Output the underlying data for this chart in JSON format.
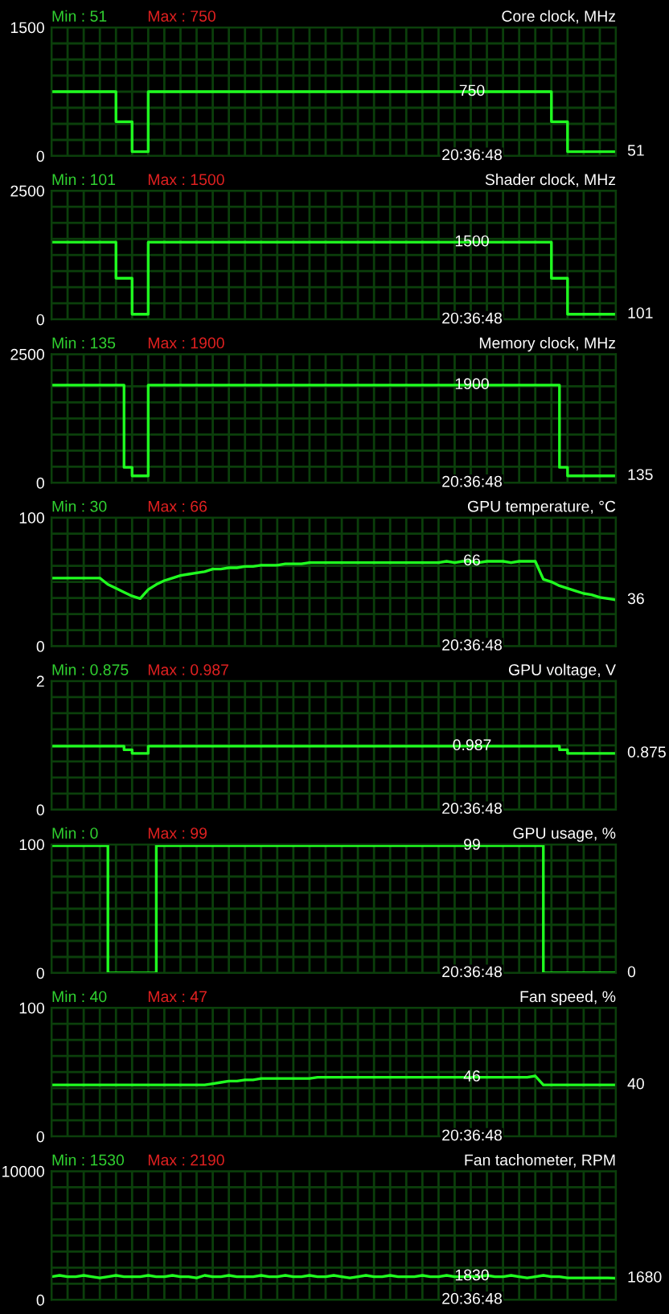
{
  "chart_data": [
    {
      "type": "step",
      "title": "Core clock, MHz",
      "color": "#20ff20",
      "grid": true,
      "tick_labels": "y",
      "ylim": [
        0,
        1500
      ],
      "yticks": [
        0,
        {
          "value": 187.5,
          "label": null
        },
        {
          "value": 375,
          "label": null
        },
        {
          "value": 562.5,
          "label": null
        },
        {
          "value": 750,
          "label": null
        },
        {
          "value": 937.5,
          "label": null
        },
        {
          "value": 1125,
          "label": null
        },
        {
          "value": 1312.5,
          "label": null
        },
        1500
      ],
      "categories": [
        null,
        null,
        null,
        null,
        null,
        null,
        null,
        null,
        null,
        null,
        null,
        null,
        null,
        null,
        null,
        null,
        null,
        null,
        null,
        null,
        null,
        null,
        null,
        null,
        null,
        null,
        null,
        null,
        null,
        null,
        null,
        null,
        null,
        null,
        null,
        null,
        null,
        null,
        null,
        null,
        null,
        null,
        null,
        null,
        null,
        null,
        null,
        null,
        null,
        null,
        null,
        null,
        null,
        null,
        null,
        null,
        null,
        null,
        null,
        null,
        null,
        null,
        null,
        null,
        null,
        null,
        null,
        null,
        null,
        null,
        null
      ],
      "values": [
        750,
        750,
        750,
        750,
        750,
        750,
        750,
        750,
        400,
        400,
        51,
        51,
        750,
        750,
        750,
        750,
        750,
        750,
        750,
        750,
        750,
        750,
        750,
        750,
        750,
        750,
        750,
        750,
        750,
        750,
        750,
        750,
        750,
        750,
        750,
        750,
        750,
        750,
        750,
        750,
        750,
        750,
        750,
        750,
        750,
        750,
        750,
        750,
        750,
        750,
        750,
        750,
        750,
        750,
        750,
        750,
        750,
        750,
        750,
        750,
        750,
        750,
        400,
        400,
        51,
        51,
        51,
        51,
        51,
        51,
        51
      ],
      "annotations": [
        "Min : 51",
        "Max : 750",
        {
          "text": "750",
          "y": 750
        },
        "51",
        "20:36:48"
      ]
    },
    {
      "type": "step",
      "title": "Shader clock, MHz",
      "color": "#20ff20",
      "grid": true,
      "tick_labels": "y",
      "ylim": [
        0,
        2500
      ],
      "yticks": [
        0,
        {
          "value": 312.5,
          "label": null
        },
        {
          "value": 625,
          "label": null
        },
        {
          "value": 937.5,
          "label": null
        },
        {
          "value": 1250,
          "label": null
        },
        {
          "value": 1562.5,
          "label": null
        },
        {
          "value": 1875,
          "label": null
        },
        {
          "value": 2187.5,
          "label": null
        },
        2500
      ],
      "categories": [
        null,
        null,
        null,
        null,
        null,
        null,
        null,
        null,
        null,
        null,
        null,
        null,
        null,
        null,
        null,
        null,
        null,
        null,
        null,
        null,
        null,
        null,
        null,
        null,
        null,
        null,
        null,
        null,
        null,
        null,
        null,
        null,
        null,
        null,
        null,
        null,
        null,
        null,
        null,
        null,
        null,
        null,
        null,
        null,
        null,
        null,
        null,
        null,
        null,
        null,
        null,
        null,
        null,
        null,
        null,
        null,
        null,
        null,
        null,
        null,
        null,
        null,
        null,
        null,
        null,
        null,
        null,
        null,
        null,
        null,
        null
      ],
      "values": [
        1500,
        1500,
        1500,
        1500,
        1500,
        1500,
        1500,
        1500,
        800,
        800,
        101,
        101,
        1500,
        1500,
        1500,
        1500,
        1500,
        1500,
        1500,
        1500,
        1500,
        1500,
        1500,
        1500,
        1500,
        1500,
        1500,
        1500,
        1500,
        1500,
        1500,
        1500,
        1500,
        1500,
        1500,
        1500,
        1500,
        1500,
        1500,
        1500,
        1500,
        1500,
        1500,
        1500,
        1500,
        1500,
        1500,
        1500,
        1500,
        1500,
        1500,
        1500,
        1500,
        1500,
        1500,
        1500,
        1500,
        1500,
        1500,
        1500,
        1500,
        1500,
        800,
        800,
        101,
        101,
        101,
        101,
        101,
        101,
        101
      ],
      "annotations": [
        "Min : 101",
        "Max : 1500",
        {
          "text": "1500",
          "y": 1500
        },
        "101",
        "20:36:48"
      ]
    },
    {
      "type": "step",
      "title": "Memory clock, MHz",
      "color": "#20ff20",
      "grid": true,
      "tick_labels": "y",
      "ylim": [
        0,
        2500
      ],
      "yticks": [
        0,
        {
          "value": 312.5,
          "label": null
        },
        {
          "value": 625,
          "label": null
        },
        {
          "value": 937.5,
          "label": null
        },
        {
          "value": 1250,
          "label": null
        },
        {
          "value": 1562.5,
          "label": null
        },
        {
          "value": 1875,
          "label": null
        },
        {
          "value": 2187.5,
          "label": null
        },
        2500
      ],
      "categories": [
        null,
        null,
        null,
        null,
        null,
        null,
        null,
        null,
        null,
        null,
        null,
        null,
        null,
        null,
        null,
        null,
        null,
        null,
        null,
        null,
        null,
        null,
        null,
        null,
        null,
        null,
        null,
        null,
        null,
        null,
        null,
        null,
        null,
        null,
        null,
        null,
        null,
        null,
        null,
        null,
        null,
        null,
        null,
        null,
        null,
        null,
        null,
        null,
        null,
        null,
        null,
        null,
        null,
        null,
        null,
        null,
        null,
        null,
        null,
        null,
        null,
        null,
        null,
        null,
        null,
        null,
        null,
        null,
        null,
        null,
        null
      ],
      "values": [
        1900,
        1900,
        1900,
        1900,
        1900,
        1900,
        1900,
        1900,
        1900,
        300,
        135,
        135,
        1900,
        1900,
        1900,
        1900,
        1900,
        1900,
        1900,
        1900,
        1900,
        1900,
        1900,
        1900,
        1900,
        1900,
        1900,
        1900,
        1900,
        1900,
        1900,
        1900,
        1900,
        1900,
        1900,
        1900,
        1900,
        1900,
        1900,
        1900,
        1900,
        1900,
        1900,
        1900,
        1900,
        1900,
        1900,
        1900,
        1900,
        1900,
        1900,
        1900,
        1900,
        1900,
        1900,
        1900,
        1900,
        1900,
        1900,
        1900,
        1900,
        1900,
        1900,
        300,
        135,
        135,
        135,
        135,
        135,
        135,
        135
      ],
      "annotations": [
        "Min : 135",
        "Max : 1900",
        {
          "text": "1900",
          "y": 1900
        },
        "135",
        "20:36:48"
      ]
    },
    {
      "type": "line",
      "title": "GPU temperature, °C",
      "color": "#20ff20",
      "grid": true,
      "tick_labels": "y",
      "ylim": [
        0,
        100
      ],
      "yticks": [
        0,
        {
          "value": 12.5,
          "label": null
        },
        {
          "value": 25,
          "label": null
        },
        {
          "value": 37.5,
          "label": null
        },
        {
          "value": 50,
          "label": null
        },
        {
          "value": 62.5,
          "label": null
        },
        {
          "value": 75,
          "label": null
        },
        {
          "value": 87.5,
          "label": null
        },
        100
      ],
      "categories": [
        null,
        null,
        null,
        null,
        null,
        null,
        null,
        null,
        null,
        null,
        null,
        null,
        null,
        null,
        null,
        null,
        null,
        null,
        null,
        null,
        null,
        null,
        null,
        null,
        null,
        null,
        null,
        null,
        null,
        null,
        null,
        null,
        null,
        null,
        null,
        null,
        null,
        null,
        null,
        null,
        null,
        null,
        null,
        null,
        null,
        null,
        null,
        null,
        null,
        null,
        null,
        null,
        null,
        null,
        null,
        null,
        null,
        null,
        null,
        null,
        null,
        null,
        null,
        null,
        null,
        null,
        null,
        null,
        null,
        null,
        null
      ],
      "values": [
        53,
        53,
        53,
        53,
        53,
        53,
        53,
        48,
        45,
        42,
        39,
        37,
        44,
        48,
        51,
        53,
        55,
        56,
        57,
        58,
        60,
        60,
        61,
        61,
        62,
        62,
        63,
        63,
        63,
        64,
        64,
        64,
        65,
        65,
        65,
        65,
        65,
        65,
        65,
        65,
        65,
        65,
        65,
        65,
        65,
        65,
        65,
        65,
        65,
        66,
        65,
        66,
        66,
        65,
        66,
        66,
        66,
        65,
        66,
        66,
        66,
        52,
        50,
        47,
        45,
        43,
        41,
        40,
        38,
        37,
        36
      ],
      "annotations": [
        "Min : 30",
        "Max : 66",
        {
          "text": "66",
          "y": 66
        },
        "36",
        "20:36:48"
      ]
    },
    {
      "type": "step",
      "title": "GPU voltage, V",
      "color": "#20ff20",
      "grid": true,
      "tick_labels": "y",
      "ylim": [
        0,
        2
      ],
      "yticks": [
        0,
        {
          "value": 0.25,
          "label": null
        },
        {
          "value": 0.5,
          "label": null
        },
        {
          "value": 0.75,
          "label": null
        },
        {
          "value": 1,
          "label": null
        },
        {
          "value": 1.25,
          "label": null
        },
        {
          "value": 1.5,
          "label": null
        },
        {
          "value": 1.75,
          "label": null
        },
        2
      ],
      "categories": [
        null,
        null,
        null,
        null,
        null,
        null,
        null,
        null,
        null,
        null,
        null,
        null,
        null,
        null,
        null,
        null,
        null,
        null,
        null,
        null,
        null,
        null,
        null,
        null,
        null,
        null,
        null,
        null,
        null,
        null,
        null,
        null,
        null,
        null,
        null,
        null,
        null,
        null,
        null,
        null,
        null,
        null,
        null,
        null,
        null,
        null,
        null,
        null,
        null,
        null,
        null,
        null,
        null,
        null,
        null,
        null,
        null,
        null,
        null,
        null,
        null,
        null,
        null,
        null,
        null,
        null,
        null,
        null,
        null,
        null,
        null
      ],
      "values": [
        0.987,
        0.987,
        0.987,
        0.987,
        0.987,
        0.987,
        0.987,
        0.987,
        0.987,
        0.93,
        0.875,
        0.875,
        0.987,
        0.987,
        0.987,
        0.987,
        0.987,
        0.987,
        0.987,
        0.987,
        0.987,
        0.987,
        0.987,
        0.987,
        0.987,
        0.987,
        0.987,
        0.987,
        0.987,
        0.987,
        0.987,
        0.987,
        0.987,
        0.987,
        0.987,
        0.987,
        0.987,
        0.987,
        0.987,
        0.987,
        0.987,
        0.987,
        0.987,
        0.987,
        0.987,
        0.987,
        0.987,
        0.987,
        0.987,
        0.987,
        0.987,
        0.987,
        0.987,
        0.987,
        0.987,
        0.987,
        0.987,
        0.987,
        0.987,
        0.987,
        0.987,
        0.987,
        0.987,
        0.93,
        0.875,
        0.875,
        0.875,
        0.875,
        0.875,
        0.875,
        0.875
      ],
      "annotations": [
        "Min : 0.875",
        "Max : 0.987",
        {
          "text": "0.987",
          "y": 0.987
        },
        "0.875",
        "20:36:48"
      ]
    },
    {
      "type": "step",
      "title": "GPU usage, %",
      "color": "#20ff20",
      "grid": true,
      "tick_labels": "y",
      "ylim": [
        0,
        100
      ],
      "yticks": [
        0,
        {
          "value": 12.5,
          "label": null
        },
        {
          "value": 25,
          "label": null
        },
        {
          "value": 37.5,
          "label": null
        },
        {
          "value": 50,
          "label": null
        },
        {
          "value": 62.5,
          "label": null
        },
        {
          "value": 75,
          "label": null
        },
        {
          "value": 87.5,
          "label": null
        },
        100
      ],
      "categories": [
        null,
        null,
        null,
        null,
        null,
        null,
        null,
        null,
        null,
        null,
        null,
        null,
        null,
        null,
        null,
        null,
        null,
        null,
        null,
        null,
        null,
        null,
        null,
        null,
        null,
        null,
        null,
        null,
        null,
        null,
        null,
        null,
        null,
        null,
        null,
        null,
        null,
        null,
        null,
        null,
        null,
        null,
        null,
        null,
        null,
        null,
        null,
        null,
        null,
        null,
        null,
        null,
        null,
        null,
        null,
        null,
        null,
        null,
        null,
        null,
        null,
        null,
        null,
        null,
        null,
        null,
        null,
        null,
        null,
        null,
        null
      ],
      "values": [
        99,
        99,
        99,
        99,
        99,
        99,
        99,
        0,
        0,
        0,
        0,
        0,
        0,
        99,
        99,
        99,
        99,
        99,
        99,
        99,
        99,
        99,
        99,
        99,
        99,
        99,
        99,
        99,
        99,
        99,
        99,
        99,
        99,
        99,
        99,
        99,
        99,
        99,
        99,
        99,
        99,
        99,
        99,
        99,
        99,
        99,
        99,
        99,
        99,
        99,
        99,
        99,
        99,
        99,
        99,
        99,
        99,
        99,
        99,
        99,
        99,
        0,
        0,
        0,
        0,
        0,
        0,
        0,
        0,
        0,
        0
      ],
      "annotations": [
        "Min : 0",
        "Max : 99",
        {
          "text": "99",
          "y": 99
        },
        "0",
        "20:36:48"
      ]
    },
    {
      "type": "line",
      "title": "Fan speed, %",
      "color": "#20ff20",
      "grid": true,
      "tick_labels": "y",
      "ylim": [
        0,
        100
      ],
      "yticks": [
        0,
        {
          "value": 12.5,
          "label": null
        },
        {
          "value": 25,
          "label": null
        },
        {
          "value": 37.5,
          "label": null
        },
        {
          "value": 50,
          "label": null
        },
        {
          "value": 62.5,
          "label": null
        },
        {
          "value": 75,
          "label": null
        },
        {
          "value": 87.5,
          "label": null
        },
        100
      ],
      "categories": [
        null,
        null,
        null,
        null,
        null,
        null,
        null,
        null,
        null,
        null,
        null,
        null,
        null,
        null,
        null,
        null,
        null,
        null,
        null,
        null,
        null,
        null,
        null,
        null,
        null,
        null,
        null,
        null,
        null,
        null,
        null,
        null,
        null,
        null,
        null,
        null,
        null,
        null,
        null,
        null,
        null,
        null,
        null,
        null,
        null,
        null,
        null,
        null,
        null,
        null,
        null,
        null,
        null,
        null,
        null,
        null,
        null,
        null,
        null,
        null,
        null,
        null,
        null,
        null,
        null,
        null,
        null,
        null,
        null,
        null,
        null
      ],
      "values": [
        40,
        40,
        40,
        40,
        40,
        40,
        40,
        40,
        40,
        40,
        40,
        40,
        40,
        40,
        40,
        40,
        40,
        40,
        40,
        40,
        41,
        42,
        43,
        43,
        44,
        44,
        45,
        45,
        45,
        45,
        45,
        45,
        45,
        46,
        46,
        46,
        46,
        46,
        46,
        46,
        46,
        46,
        46,
        46,
        46,
        46,
        46,
        46,
        46,
        46,
        46,
        46,
        46,
        46,
        46,
        46,
        46,
        46,
        46,
        46,
        47,
        40,
        40,
        40,
        40,
        40,
        40,
        40,
        40,
        40,
        40
      ],
      "annotations": [
        "Min : 40",
        "Max : 47",
        {
          "text": "46",
          "y": 46
        },
        "40",
        "20:36:48"
      ]
    },
    {
      "type": "line",
      "title": "Fan tachometer, RPM",
      "color": "#20ff20",
      "grid": true,
      "tick_labels": "y",
      "ylim": [
        0,
        10000
      ],
      "yticks": [
        0,
        {
          "value": 1250,
          "label": null
        },
        {
          "value": 2500,
          "label": null
        },
        {
          "value": 3750,
          "label": null
        },
        {
          "value": 5000,
          "label": null
        },
        {
          "value": 6250,
          "label": null
        },
        {
          "value": 7500,
          "label": null
        },
        {
          "value": 8750,
          "label": null
        },
        10000
      ],
      "categories": [
        null,
        null,
        null,
        null,
        null,
        null,
        null,
        null,
        null,
        null,
        null,
        null,
        null,
        null,
        null,
        null,
        null,
        null,
        null,
        null,
        null,
        null,
        null,
        null,
        null,
        null,
        null,
        null,
        null,
        null,
        null,
        null,
        null,
        null,
        null,
        null,
        null,
        null,
        null,
        null,
        null,
        null,
        null,
        null,
        null,
        null,
        null,
        null,
        null,
        null,
        null,
        null,
        null,
        null,
        null,
        null,
        null,
        null,
        null,
        null,
        null,
        null,
        null,
        null,
        null,
        null,
        null,
        null,
        null,
        null,
        null
      ],
      "values": [
        1800,
        1900,
        1800,
        1800,
        1900,
        1800,
        1700,
        1800,
        1900,
        1800,
        1800,
        1800,
        1900,
        1800,
        1800,
        1900,
        1800,
        1800,
        1700,
        1900,
        1800,
        1800,
        1900,
        1800,
        1800,
        1800,
        1900,
        1800,
        1800,
        1900,
        1800,
        1800,
        1900,
        1800,
        1800,
        1900,
        1800,
        1700,
        1800,
        1900,
        1800,
        1800,
        1900,
        1800,
        1800,
        1800,
        1900,
        1800,
        1800,
        1900,
        1800,
        1800,
        1830,
        1800,
        1900,
        1800,
        1800,
        1900,
        1800,
        1700,
        1800,
        1900,
        1800,
        1800,
        1700,
        1700,
        1700,
        1700,
        1700,
        1700,
        1680
      ],
      "annotations": [
        "Min : 1530",
        "Max : 2190",
        {
          "text": "1830",
          "y": 1830
        },
        "1680",
        "20:36:48"
      ]
    }
  ]
}
